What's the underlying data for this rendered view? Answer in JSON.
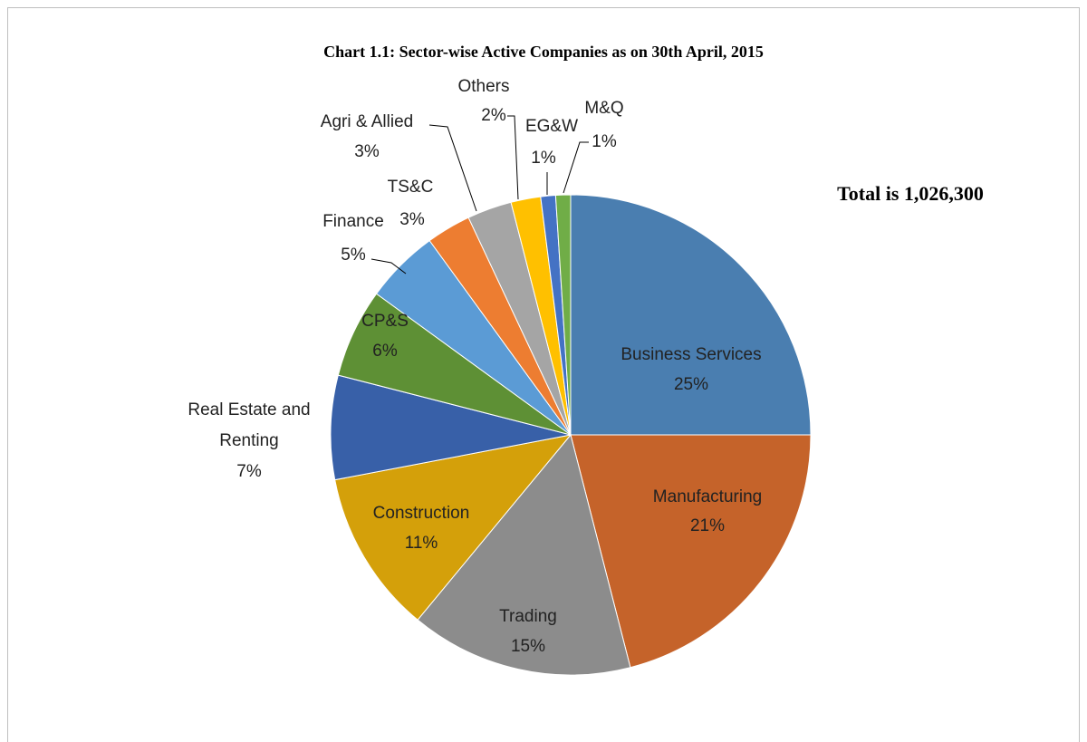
{
  "chart_data": {
    "type": "pie",
    "title": "Chart 1.1: Sector-wise Active Companies as on 30th April, 2015",
    "annotation": "Total is 1,026,300",
    "categories": [
      "Business Services",
      "Manufacturing",
      "Trading",
      "Construction",
      "Real Estate and Renting",
      "CP&S",
      "Finance",
      "TS&C",
      "Agri & Allied",
      "Others",
      "EG&W",
      "M&Q"
    ],
    "values": [
      25,
      21,
      15,
      11,
      7,
      6,
      5,
      3,
      3,
      2,
      1,
      1
    ],
    "value_labels": [
      "25%",
      "21%",
      "15%",
      "11%",
      "7%",
      "6%",
      "5%",
      "3%",
      "3%",
      "2%",
      "1%",
      "1%"
    ],
    "colors": [
      "#4a7eb0",
      "#c5632a",
      "#8c8c8c",
      "#d4a00a",
      "#3860a8",
      "#5e9035",
      "#5b9bd5",
      "#ed7d31",
      "#a5a5a5",
      "#ffc000",
      "#4472c4",
      "#70ad47"
    ]
  }
}
